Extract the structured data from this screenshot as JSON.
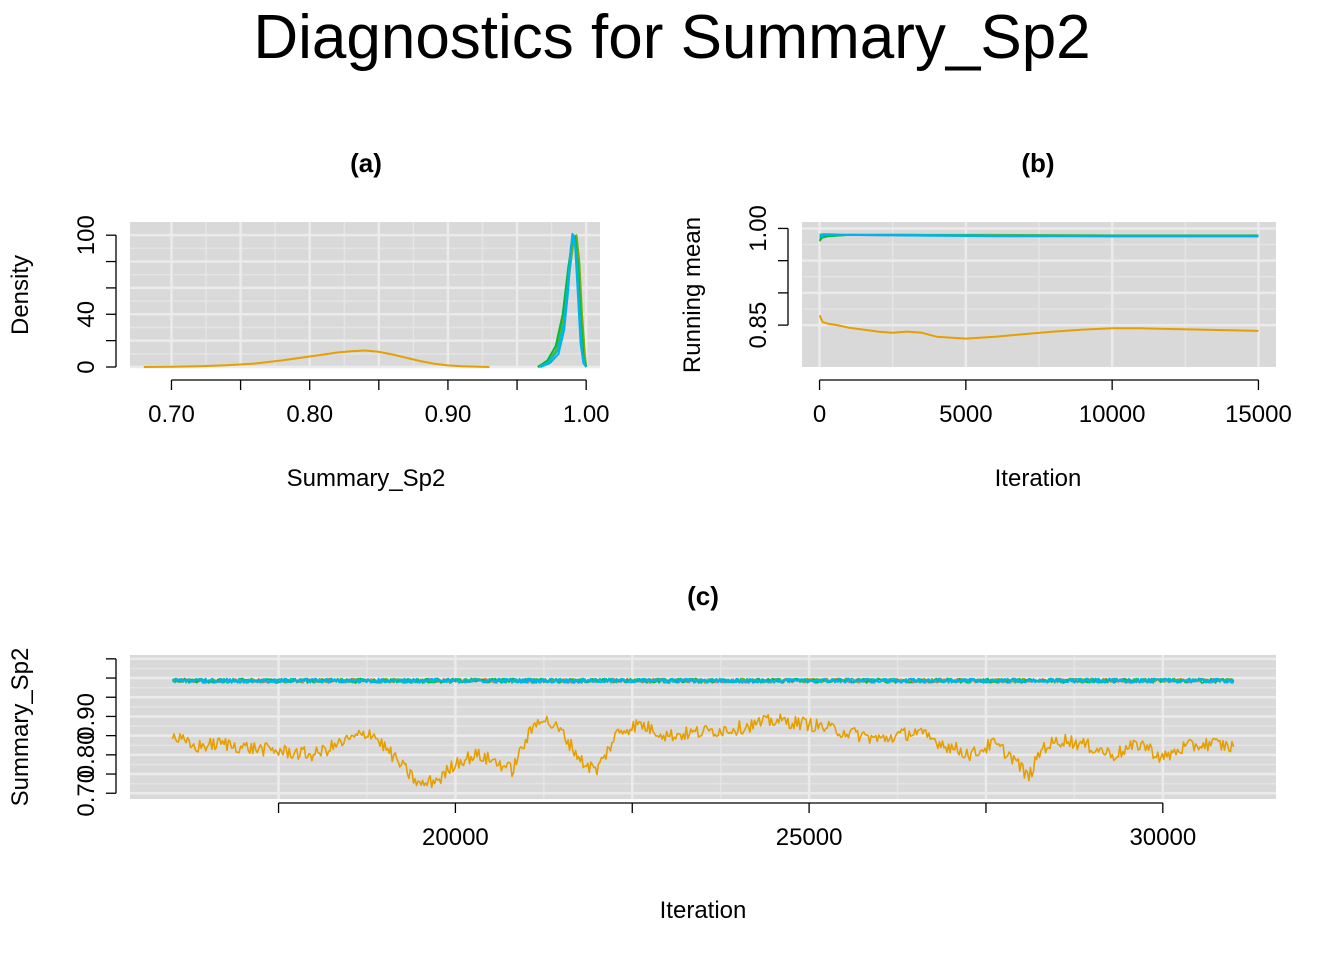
{
  "title": "Diagnostics for Summary_Sp2",
  "colors": {
    "panel_bg": "#D9D9D9",
    "grid_major": "#EBEBEB",
    "grid_minor": "#E4E4E4",
    "chains": [
      "#F8766D",
      "#7CAE00",
      "#00BA38",
      "#00BFC4",
      "#00B0F6",
      "#E69F00"
    ]
  },
  "chart_data": [
    {
      "id": "a",
      "type": "line",
      "title": "(a)",
      "xlabel": "Summary_Sp2",
      "ylabel": "Density",
      "xlim": [
        0.67,
        1.01
      ],
      "ylim": [
        0,
        110
      ],
      "x_ticks": [
        0.7,
        0.75,
        0.8,
        0.85,
        0.9,
        0.95,
        1.0
      ],
      "x_tick_labels": [
        "0.70",
        "",
        "0.80",
        "",
        "0.90",
        "",
        "1.00"
      ],
      "y_ticks": [
        0,
        20,
        40,
        60,
        80,
        100
      ],
      "y_tick_labels": [
        "0",
        "",
        "40",
        "",
        "",
        "100"
      ],
      "grid": true,
      "series": [
        {
          "color": "#F8766D",
          "x": [
            0.965,
            0.972,
            0.978,
            0.983,
            0.987,
            0.99,
            0.992,
            0.994,
            0.996,
            0.998,
            1.0
          ],
          "y": [
            0,
            3,
            12,
            35,
            70,
            95,
            99,
            85,
            50,
            15,
            0
          ]
        },
        {
          "color": "#7CAE00",
          "x": [
            0.966,
            0.973,
            0.979,
            0.984,
            0.988,
            0.991,
            0.993,
            0.995,
            0.997,
            0.999,
            1.0
          ],
          "y": [
            0,
            4,
            14,
            38,
            72,
            96,
            100,
            80,
            40,
            10,
            0
          ]
        },
        {
          "color": "#00BA38",
          "x": [
            0.965,
            0.972,
            0.978,
            0.983,
            0.987,
            0.99,
            0.992,
            0.994,
            0.996,
            0.998,
            1.0
          ],
          "y": [
            0,
            5,
            16,
            40,
            75,
            97,
            99,
            78,
            38,
            8,
            0
          ]
        },
        {
          "color": "#00BFC4",
          "x": [
            0.966,
            0.973,
            0.979,
            0.984,
            0.987,
            0.989,
            0.991,
            0.993,
            0.995,
            0.997,
            0.999,
            1.0
          ],
          "y": [
            0,
            4,
            12,
            34,
            66,
            92,
            100,
            86,
            45,
            12,
            2,
            0
          ]
        },
        {
          "color": "#00B0F6",
          "x": [
            0.967,
            0.974,
            0.98,
            0.984,
            0.987,
            0.989,
            0.99,
            0.992,
            0.994,
            0.996,
            0.998,
            1.0
          ],
          "y": [
            0,
            3,
            10,
            28,
            58,
            90,
            101,
            92,
            55,
            18,
            3,
            0
          ]
        },
        {
          "color": "#E69F00",
          "x": [
            0.68,
            0.7,
            0.72,
            0.74,
            0.76,
            0.78,
            0.8,
            0.82,
            0.83,
            0.84,
            0.85,
            0.86,
            0.87,
            0.88,
            0.89,
            0.9,
            0.91,
            0.93
          ],
          "y": [
            0,
            0.2,
            0.6,
            1.4,
            2.6,
            5,
            8,
            11,
            12,
            12.5,
            11.5,
            9.5,
            7,
            4.5,
            2.5,
            1.2,
            0.5,
            0
          ]
        }
      ]
    },
    {
      "id": "b",
      "type": "line",
      "title": "(b)",
      "xlabel": "Iteration",
      "ylabel": "Running mean",
      "xlim": [
        -600,
        15600
      ],
      "ylim": [
        0.785,
        1.01
      ],
      "x_ticks": [
        0,
        5000,
        10000,
        15000
      ],
      "x_tick_labels": [
        "0",
        "5000",
        "10000",
        "15000"
      ],
      "y_ticks": [
        0.85,
        0.9,
        0.95,
        1.0
      ],
      "y_tick_labels": [
        "0.85",
        "",
        "",
        "1.00"
      ],
      "grid": true,
      "series": [
        {
          "color": "#F8766D",
          "x": [
            0,
            100,
            300,
            1000,
            3000,
            6000,
            10000,
            15000
          ],
          "y": [
            0.985,
            0.988,
            0.989,
            0.99,
            0.989,
            0.989,
            0.988,
            0.988
          ]
        },
        {
          "color": "#7CAE00",
          "x": [
            0,
            100,
            300,
            1000,
            3000,
            6000,
            10000,
            15000
          ],
          "y": [
            0.98,
            0.987,
            0.989,
            0.99,
            0.99,
            0.99,
            0.989,
            0.989
          ]
        },
        {
          "color": "#00BA38",
          "x": [
            0,
            100,
            300,
            1000,
            3000,
            6000,
            10000,
            15000
          ],
          "y": [
            0.982,
            0.986,
            0.988,
            0.99,
            0.99,
            0.989,
            0.989,
            0.989
          ]
        },
        {
          "color": "#00BFC4",
          "x": [
            0,
            100,
            300,
            1000,
            3000,
            6000,
            10000,
            15000
          ],
          "y": [
            0.99,
            0.991,
            0.991,
            0.99,
            0.99,
            0.989,
            0.988,
            0.988
          ]
        },
        {
          "color": "#00B0F6",
          "x": [
            0,
            100,
            300,
            1000,
            3000,
            6000,
            10000,
            15000
          ],
          "y": [
            0.987,
            0.989,
            0.99,
            0.99,
            0.989,
            0.988,
            0.988,
            0.988
          ]
        },
        {
          "color": "#E69F00",
          "x": [
            0,
            100,
            300,
            600,
            1000,
            1500,
            2000,
            2500,
            3000,
            3500,
            4000,
            5000,
            6000,
            7000,
            8000,
            9000,
            10000,
            11000,
            12000,
            13000,
            14000,
            15000
          ],
          "y": [
            0.865,
            0.855,
            0.852,
            0.85,
            0.846,
            0.843,
            0.84,
            0.838,
            0.84,
            0.838,
            0.832,
            0.829,
            0.832,
            0.836,
            0.84,
            0.843,
            0.845,
            0.845,
            0.844,
            0.843,
            0.842,
            0.841
          ]
        }
      ]
    },
    {
      "id": "c",
      "type": "line",
      "title": "(c)",
      "xlabel": "Iteration",
      "ylabel": "Summary_Sp2",
      "xlim": [
        15400,
        31600
      ],
      "ylim": [
        0.685,
        1.06
      ],
      "x_ticks": [
        17500,
        20000,
        22500,
        25000,
        27500,
        30000
      ],
      "x_tick_labels": [
        "",
        "20000",
        "",
        "25000",
        "",
        "30000"
      ],
      "y_ticks": [
        0.7,
        0.75,
        0.8,
        0.85,
        0.9,
        0.95,
        1.0,
        1.05
      ],
      "y_tick_labels": [
        "0.70",
        "",
        "0.80",
        "",
        "0.90",
        "",
        "",
        ""
      ],
      "grid": true,
      "series": [
        {
          "color": "#F8766D",
          "x_start": 16000,
          "x_end": 31000,
          "mean": 0.993,
          "noise": 0.006
        },
        {
          "color": "#7CAE00",
          "x_start": 16000,
          "x_end": 31000,
          "mean": 0.994,
          "noise": 0.005
        },
        {
          "color": "#00BA38",
          "x_start": 16000,
          "x_end": 31000,
          "mean": 0.993,
          "noise": 0.006
        },
        {
          "color": "#00BFC4",
          "x_start": 16000,
          "x_end": 31000,
          "mean": 0.993,
          "noise": 0.006
        },
        {
          "color": "#00B0F6",
          "x_start": 16000,
          "x_end": 31000,
          "mean": 0.993,
          "noise": 0.006
        },
        {
          "color": "#E69F00",
          "x": [
            16000,
            16300,
            16700,
            17000,
            17500,
            18000,
            18500,
            18800,
            19000,
            19300,
            19500,
            19800,
            20000,
            20300,
            20600,
            20800,
            21000,
            21200,
            21500,
            21800,
            22000,
            22300,
            22600,
            23000,
            23500,
            24000,
            24500,
            25000,
            25500,
            26000,
            26500,
            27000,
            27300,
            27600,
            27900,
            28100,
            28300,
            28600,
            29000,
            29300,
            29700,
            30000,
            30300,
            30700,
            31000
          ],
          "y": [
            0.85,
            0.82,
            0.83,
            0.82,
            0.81,
            0.8,
            0.84,
            0.86,
            0.82,
            0.76,
            0.72,
            0.74,
            0.78,
            0.8,
            0.78,
            0.76,
            0.84,
            0.9,
            0.86,
            0.78,
            0.76,
            0.86,
            0.88,
            0.85,
            0.86,
            0.87,
            0.89,
            0.88,
            0.86,
            0.84,
            0.86,
            0.82,
            0.8,
            0.83,
            0.79,
            0.74,
            0.82,
            0.84,
            0.82,
            0.8,
            0.83,
            0.79,
            0.82,
            0.83,
            0.82
          ],
          "noise": 0.018
        }
      ]
    }
  ]
}
